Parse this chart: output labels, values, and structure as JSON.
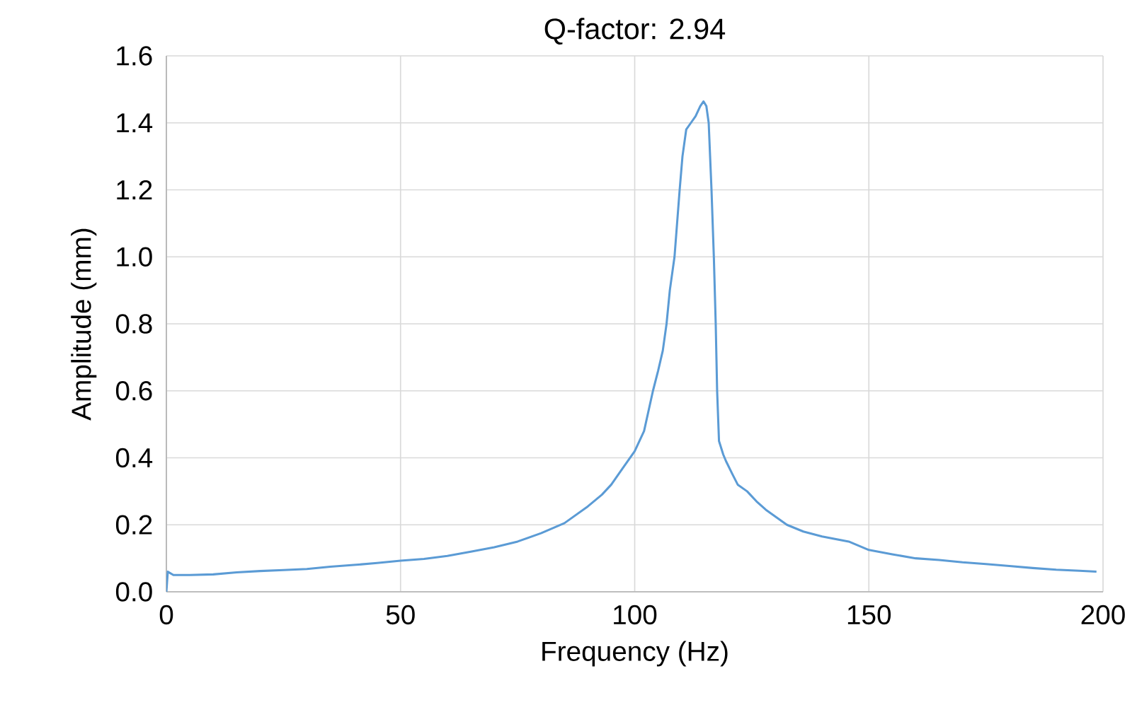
{
  "chart_data": {
    "type": "line",
    "title": "Q-factor: 2.94",
    "xlabel": "Frequency (Hz)",
    "ylabel": "Amplitude (mm)",
    "xlim": [
      0,
      200
    ],
    "xticks": [
      0,
      50,
      100,
      150,
      200
    ],
    "ylim": [
      0,
      1.6
    ],
    "yticks": [
      {
        "value": 0,
        "label": "0.0"
      },
      {
        "value": 0.2,
        "label": "0.2"
      },
      {
        "value": 0.4,
        "label": "0.4"
      },
      {
        "value": 0.6,
        "label": "0.6"
      },
      {
        "value": 0.8,
        "label": "0.8"
      },
      {
        "value": 1.0,
        "label": "1.0"
      },
      {
        "value": 1.2,
        "label": "1.2"
      },
      {
        "value": 1.4,
        "label": "1.4"
      },
      {
        "value": 1.6,
        "label": "1.6"
      }
    ],
    "grid": true,
    "marker": "none",
    "line_style": "solid",
    "series": [
      {
        "color": "#5b9bd5",
        "x": [
          0,
          0.3,
          1.5,
          5,
          10,
          15,
          20,
          25,
          30,
          35,
          40,
          45,
          50,
          55,
          60,
          65,
          70,
          75,
          80,
          85,
          90,
          93,
          95,
          97,
          100,
          102,
          103.9,
          105,
          106,
          106.8,
          107.5,
          108.5,
          109.6,
          110.2,
          111,
          112,
          113,
          114,
          114.7,
          115.3,
          115.8,
          116.4,
          116.9,
          117.3,
          117.6,
          118,
          118.9,
          119.5,
          120.9,
          122,
          124,
          126,
          128,
          132.5,
          136,
          140,
          145.7,
          150,
          155,
          160,
          165,
          170,
          175,
          180,
          185,
          190,
          195,
          198.6
        ],
        "values": [
          0.0,
          0.06,
          0.05,
          0.05,
          0.052,
          0.058,
          0.062,
          0.065,
          0.068,
          0.075,
          0.08,
          0.086,
          0.093,
          0.098,
          0.107,
          0.12,
          0.133,
          0.15,
          0.175,
          0.205,
          0.255,
          0.29,
          0.32,
          0.36,
          0.42,
          0.48,
          0.6,
          0.66,
          0.72,
          0.8,
          0.9,
          1.0,
          1.2,
          1.3,
          1.38,
          1.4,
          1.42,
          1.45,
          1.464,
          1.45,
          1.4,
          1.2,
          1.0,
          0.8,
          0.6,
          0.45,
          0.41,
          0.39,
          0.35,
          0.32,
          0.3,
          0.27,
          0.245,
          0.2,
          0.18,
          0.165,
          0.15,
          0.125,
          0.112,
          0.1,
          0.095,
          0.088,
          0.083,
          0.077,
          0.071,
          0.066,
          0.063,
          0.06
        ]
      }
    ]
  }
}
